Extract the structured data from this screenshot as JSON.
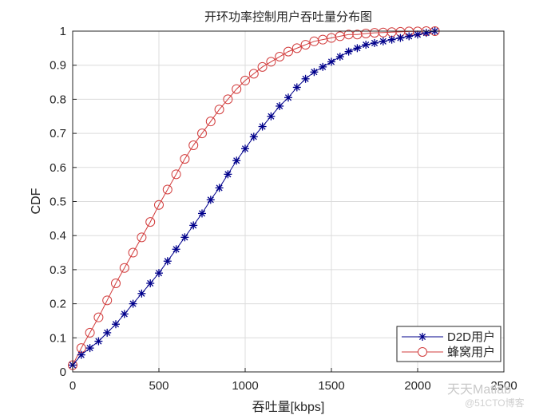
{
  "chart_data": {
    "type": "line",
    "title": "开环功率控制用户吞吐量分布图",
    "xlabel": "吞吐量[kbps]",
    "ylabel": "CDF",
    "xlim": [
      0,
      2500
    ],
    "ylim": [
      0,
      1
    ],
    "xticks": [
      0,
      500,
      1000,
      1500,
      2000,
      2500
    ],
    "yticks": [
      0,
      0.1,
      0.2,
      0.3,
      0.4,
      0.5,
      0.6,
      0.7,
      0.8,
      0.9,
      1
    ],
    "grid": true,
    "legend_position": "lower right",
    "x": [
      0,
      50,
      100,
      150,
      200,
      250,
      300,
      350,
      400,
      450,
      500,
      550,
      600,
      650,
      700,
      750,
      800,
      850,
      900,
      950,
      1000,
      1050,
      1100,
      1150,
      1200,
      1250,
      1300,
      1350,
      1400,
      1450,
      1500,
      1550,
      1600,
      1650,
      1700,
      1750,
      1800,
      1850,
      1900,
      1950,
      2000,
      2050,
      2100
    ],
    "series": [
      {
        "name": "D2D用户",
        "color": "#00008b",
        "marker": "asterisk",
        "values": [
          0.02,
          0.05,
          0.07,
          0.09,
          0.115,
          0.14,
          0.17,
          0.2,
          0.23,
          0.26,
          0.29,
          0.325,
          0.36,
          0.395,
          0.43,
          0.465,
          0.505,
          0.54,
          0.58,
          0.62,
          0.655,
          0.69,
          0.72,
          0.75,
          0.78,
          0.805,
          0.835,
          0.86,
          0.88,
          0.895,
          0.91,
          0.925,
          0.94,
          0.95,
          0.96,
          0.965,
          0.97,
          0.975,
          0.98,
          0.985,
          0.99,
          0.995,
          1.0
        ]
      },
      {
        "name": "蜂窝用户",
        "color": "#d23c3c",
        "marker": "circle",
        "values": [
          0.02,
          0.07,
          0.115,
          0.16,
          0.21,
          0.26,
          0.305,
          0.35,
          0.395,
          0.44,
          0.49,
          0.535,
          0.58,
          0.625,
          0.665,
          0.7,
          0.735,
          0.77,
          0.8,
          0.83,
          0.855,
          0.875,
          0.895,
          0.91,
          0.925,
          0.94,
          0.95,
          0.96,
          0.97,
          0.975,
          0.98,
          0.985,
          0.99,
          0.99,
          0.993,
          0.995,
          0.996,
          0.997,
          0.998,
          0.999,
          0.999,
          1.0,
          1.0
        ]
      }
    ]
  },
  "watermark": {
    "line1": "天天Matlab",
    "line2": "@51CTO博客"
  }
}
